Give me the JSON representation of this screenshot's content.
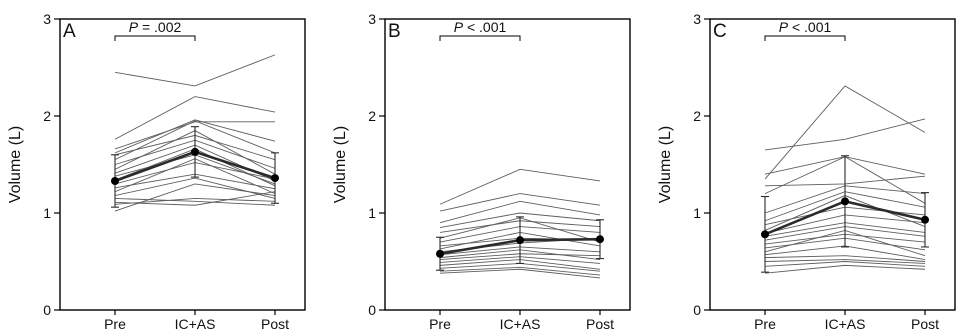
{
  "chart_data": [
    {
      "type": "line",
      "panel": "A",
      "ylabel": "Volume (L)",
      "categories": [
        "Pre",
        "IC+AS",
        "Post"
      ],
      "ylim": [
        0,
        3
      ],
      "yticks": [
        0,
        1,
        2,
        3
      ],
      "annotation": {
        "p_symbol": "P",
        "p_text": " = .002"
      },
      "mean": {
        "values": [
          1.33,
          1.63,
          1.36
        ],
        "sd": [
          0.27,
          0.26,
          0.26
        ]
      },
      "subjects": [
        [
          2.45,
          2.31,
          2.63
        ],
        [
          1.76,
          2.2,
          2.04
        ],
        [
          1.66,
          1.94,
          1.94
        ],
        [
          1.62,
          1.96,
          1.74
        ],
        [
          1.6,
          1.8,
          1.55
        ],
        [
          1.55,
          1.95,
          1.62
        ],
        [
          1.5,
          1.75,
          1.46
        ],
        [
          1.45,
          1.85,
          1.4
        ],
        [
          1.41,
          1.7,
          1.33
        ],
        [
          1.38,
          1.6,
          1.3
        ],
        [
          1.34,
          1.66,
          1.28
        ],
        [
          1.3,
          1.52,
          1.35
        ],
        [
          1.26,
          1.4,
          1.25
        ],
        [
          1.22,
          1.56,
          1.2
        ],
        [
          1.18,
          1.36,
          1.15
        ],
        [
          1.15,
          1.12,
          1.08
        ],
        [
          1.11,
          1.08,
          1.22
        ],
        [
          1.09,
          1.15,
          1.12
        ],
        [
          1.02,
          1.3,
          1.18
        ]
      ]
    },
    {
      "type": "line",
      "panel": "B",
      "ylabel": "Volume (L)",
      "categories": [
        "Pre",
        "IC+AS",
        "Post"
      ],
      "ylim": [
        0,
        3
      ],
      "yticks": [
        0,
        1,
        2,
        3
      ],
      "annotation": {
        "p_symbol": "P",
        "p_text": " < .001"
      },
      "mean": {
        "values": [
          0.58,
          0.72,
          0.73
        ],
        "sd": [
          0.17,
          0.24,
          0.2
        ]
      },
      "subjects": [
        [
          1.09,
          1.45,
          1.33
        ],
        [
          1.02,
          1.2,
          1.08
        ],
        [
          0.9,
          1.12,
          0.98
        ],
        [
          0.85,
          1.0,
          0.92
        ],
        [
          0.8,
          0.92,
          0.86
        ],
        [
          0.74,
          0.95,
          0.7
        ],
        [
          0.7,
          0.86,
          0.8
        ],
        [
          0.66,
          0.74,
          0.72
        ],
        [
          0.63,
          0.8,
          0.66
        ],
        [
          0.6,
          0.69,
          0.74
        ],
        [
          0.57,
          0.65,
          0.6
        ],
        [
          0.54,
          0.62,
          0.52
        ],
        [
          0.52,
          0.58,
          0.56
        ],
        [
          0.49,
          0.55,
          0.48
        ],
        [
          0.46,
          0.52,
          0.42
        ],
        [
          0.43,
          0.48,
          0.4
        ],
        [
          0.4,
          0.44,
          0.36
        ],
        [
          0.38,
          0.42,
          0.33
        ]
      ]
    },
    {
      "type": "line",
      "panel": "C",
      "ylabel": "Volume (L)",
      "categories": [
        "Pre",
        "IC+AS",
        "Post"
      ],
      "ylim": [
        0,
        3
      ],
      "yticks": [
        0,
        1,
        2,
        3
      ],
      "annotation": {
        "p_symbol": "P",
        "p_text": " < .001"
      },
      "mean": {
        "values": [
          0.78,
          1.12,
          0.93
        ],
        "sd": [
          0.39,
          0.47,
          0.28
        ]
      },
      "subjects": [
        [
          1.65,
          1.76,
          1.97
        ],
        [
          1.35,
          2.31,
          1.83
        ],
        [
          1.4,
          1.58,
          1.4
        ],
        [
          1.28,
          1.3,
          1.38
        ],
        [
          1.2,
          1.58,
          1.1
        ],
        [
          1.0,
          1.28,
          1.2
        ],
        [
          0.92,
          1.22,
          1.06
        ],
        [
          0.88,
          1.06,
          0.98
        ],
        [
          0.82,
          1.18,
          0.86
        ],
        [
          0.79,
          0.98,
          0.9
        ],
        [
          0.76,
          0.9,
          0.8
        ],
        [
          0.72,
          0.86,
          0.76
        ],
        [
          0.68,
          0.78,
          0.7
        ],
        [
          0.64,
          0.74,
          0.62
        ],
        [
          0.6,
          0.82,
          0.56
        ],
        [
          0.57,
          0.66,
          0.52
        ],
        [
          0.54,
          0.56,
          0.5
        ],
        [
          0.5,
          0.52,
          0.48
        ],
        [
          0.45,
          0.5,
          0.45
        ],
        [
          0.38,
          0.46,
          0.42
        ]
      ]
    }
  ],
  "colors": {
    "subject_line": "#5e5e5e",
    "mean_line": "#2b2b2b",
    "mean_marker": "#000000",
    "axis": "#000000"
  }
}
